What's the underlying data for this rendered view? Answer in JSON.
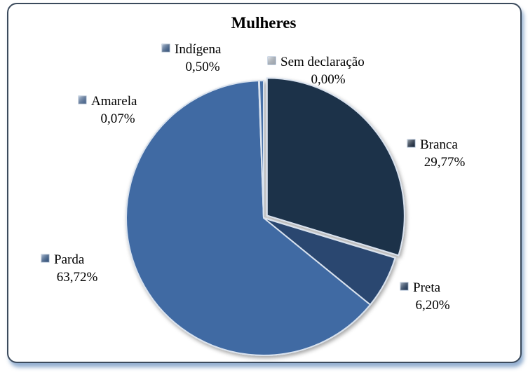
{
  "chart_data": {
    "type": "pie",
    "title": "Mulheres",
    "slices": [
      {
        "name": "Sem declaração",
        "value": 0.0,
        "label_value": "0,00%",
        "color": "#cfd8e3"
      },
      {
        "name": "Branca",
        "value": 29.77,
        "label_value": "29,77%",
        "color": "#1e3049"
      },
      {
        "name": "Preta",
        "value": 6.2,
        "label_value": "6,20%",
        "color": "#29476f"
      },
      {
        "name": "Parda",
        "value": 63.72,
        "label_value": "63,72%",
        "color": "#3f6aa3"
      },
      {
        "name": "Amarela",
        "value": 0.07,
        "label_value": "0,07%",
        "color": "#5e84b8"
      },
      {
        "name": "Indígena",
        "value": 0.5,
        "label_value": "0,50%",
        "color": "#4a72a8"
      }
    ],
    "legend": "labels beside slices"
  }
}
